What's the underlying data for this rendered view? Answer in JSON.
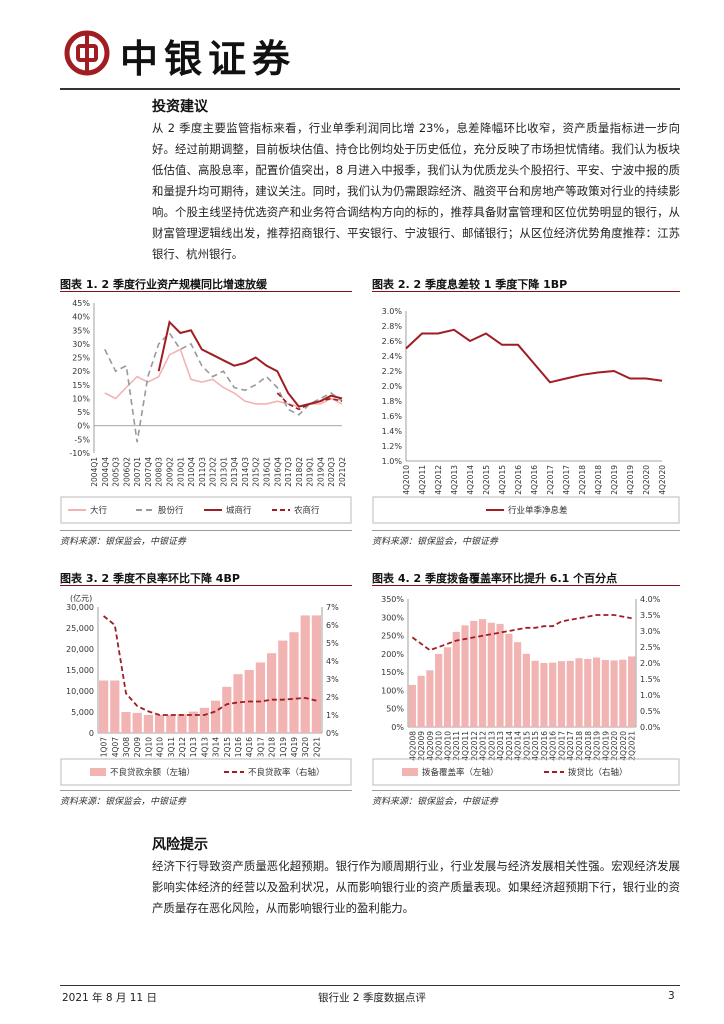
{
  "header": {
    "brand": "中银证券",
    "logo": "bank-of-china-logo",
    "color": "#a01d22"
  },
  "sections": [
    {
      "title": "投资建议",
      "text": "从 2 季度主要监管指标来看，行业单季利润同比增 23%，息差降幅环比收窄，资产质量指标进一步向好。经过前期调整，目前板块估值、持仓比例均处于历史低位，充分反映了市场担忧情绪。我们认为板块低估值、高股息率，配置价值突出，8 月进入中报季，我们认为优质龙头个股招行、平安、宁波中报的质和量提升均可期待，建议关注。同时，我们认为仍需跟踪经济、融资平台和房地产等政策对行业的持续影响。个股主线坚持优选资产和业务符合调结构方向的标的，推荐具备财富管理和区位优势明显的银行，从财富管理逻辑线出发，推荐招商银行、平安银行、宁波银行、邮储银行；从区位经济优势角度推荐：江苏银行、杭州银行。"
    },
    {
      "title": "风险提示",
      "text": "经济下行导致资产质量恶化超预期。银行作为顺周期行业，行业发展与经济发展相关性强。宏观经济发展影响实体经济的经营以及盈利状况，从而影响银行业的资产质量表现。如果经济超预期下行，银行业的资产质量存在恶化风险，从而影响银行业的盈利能力。"
    }
  ],
  "source_text": "资料来源：银保监会，中银证券",
  "footer": {
    "date": "2021 年 8 月 11 日",
    "title": "银行业 2 季度数据点评",
    "page": "3"
  },
  "chart_data": [
    {
      "title": "图表 1. 2 季度行业资产规模同比增速放缓",
      "type": "line",
      "x": [
        "2004Q1",
        "2004Q4",
        "2005Q3",
        "2006Q2",
        "2007Q1",
        "2007Q4",
        "2008Q3",
        "2009Q2",
        "2010Q1",
        "2010Q4",
        "2011Q3",
        "2012Q2",
        "2013Q1",
        "2013Q4",
        "2014Q3",
        "2015Q2",
        "2016Q1",
        "2016Q4",
        "2017Q3",
        "2018Q2",
        "2019Q1",
        "2019Q4",
        "2020Q3",
        "2021Q2"
      ],
      "ylim": [
        -10,
        45
      ],
      "yticks": [
        "-10%",
        "-5%",
        "0%",
        "5%",
        "10%",
        "15%",
        "20%",
        "25%",
        "30%",
        "35%",
        "40%",
        "45%"
      ],
      "series": [
        {
          "name": "大行",
          "color": "#f2b3b3",
          "dash": "",
          "values": [
            null,
            12,
            10,
            14,
            18,
            16,
            18,
            26,
            28,
            17,
            16,
            17,
            14,
            12,
            9,
            8,
            8,
            9,
            8,
            7,
            8,
            8,
            10,
            8
          ]
        },
        {
          "name": "股份行",
          "color": "#999999",
          "dash": "6,4",
          "values": [
            null,
            28,
            20,
            22,
            -6,
            18,
            30,
            34,
            28,
            30,
            22,
            18,
            20,
            14,
            13,
            15,
            18,
            14,
            6,
            4,
            8,
            10,
            12,
            9
          ]
        },
        {
          "name": "城商行",
          "color": "#a01d22",
          "dash": "",
          "values": [
            null,
            null,
            null,
            null,
            null,
            null,
            20,
            38,
            34,
            35,
            28,
            26,
            24,
            22,
            23,
            25,
            22,
            20,
            12,
            7,
            8,
            9,
            11,
            10
          ]
        },
        {
          "name": "农商行",
          "color": "#a01d22",
          "dash": "5,3",
          "values": [
            null,
            null,
            null,
            null,
            null,
            null,
            null,
            null,
            null,
            null,
            null,
            null,
            null,
            null,
            null,
            null,
            null,
            12,
            8,
            6,
            8,
            9,
            10,
            9
          ]
        }
      ]
    },
    {
      "title": "图表 2. 2 季度息差较 1 季度下降 1BP",
      "type": "line",
      "x": [
        "4Q2010",
        "4Q2011",
        "4Q2012",
        "4Q2013",
        "4Q2014",
        "2Q2015",
        "4Q2015",
        "2Q2016",
        "4Q2016",
        "2Q2017",
        "4Q2017",
        "2Q2018",
        "4Q2018",
        "2Q2019",
        "4Q2019",
        "2Q2020",
        "4Q2020"
      ],
      "ylim": [
        1.0,
        3.0
      ],
      "yticks": [
        "1.0%",
        "1.2%",
        "1.4%",
        "1.6%",
        "1.8%",
        "2.0%",
        "2.2%",
        "2.4%",
        "2.6%",
        "2.8%",
        "3.0%"
      ],
      "series": [
        {
          "name": "行业单季净息差",
          "color": "#a01d22",
          "dash": "",
          "values": [
            2.5,
            2.7,
            2.7,
            2.75,
            2.6,
            2.7,
            2.55,
            2.55,
            2.3,
            2.05,
            2.1,
            2.15,
            2.18,
            2.2,
            2.1,
            2.1,
            2.07
          ]
        }
      ]
    },
    {
      "title": "图表 3. 2 季度不良率环比下降 4BP",
      "type": "bar",
      "unit": "(亿元)",
      "x": [
        "1Q07",
        "4Q07",
        "3Q08",
        "2Q09",
        "1Q10",
        "4Q10",
        "3Q11",
        "2Q12",
        "1Q13",
        "4Q13",
        "3Q14",
        "2Q15",
        "1Q16",
        "4Q16",
        "3Q17",
        "2Q18",
        "1Q19",
        "4Q19",
        "3Q20",
        "2Q21"
      ],
      "ylim_left": [
        0,
        30000
      ],
      "yticks_left": [
        "0",
        "5,000",
        "10,000",
        "15,000",
        "20,000",
        "25,000",
        "30,000"
      ],
      "ylim_right": [
        0,
        7
      ],
      "yticks_right": [
        "0%",
        "1%",
        "2%",
        "3%",
        "4%",
        "5%",
        "6%",
        "7%"
      ],
      "bars": {
        "name": "不良贷款余额（左轴）",
        "color": "#f2b3b3",
        "values": [
          12500,
          12500,
          5000,
          4800,
          4300,
          4300,
          4300,
          4500,
          5100,
          6000,
          7700,
          11000,
          14000,
          15000,
          16800,
          19000,
          22000,
          24000,
          28000,
          28000
        ]
      },
      "line": {
        "name": "不良贷款率（右轴）",
        "color": "#a01d22",
        "dash": "5,3",
        "values": [
          6.5,
          6.0,
          2.2,
          1.5,
          1.2,
          1.0,
          1.0,
          1.0,
          1.0,
          1.0,
          1.2,
          1.6,
          1.7,
          1.75,
          1.75,
          1.85,
          1.85,
          1.9,
          1.95,
          1.8
        ]
      }
    },
    {
      "title": "图表 4. 2 季度拨备覆盖率环比提升 6.1 个百分点",
      "type": "bar",
      "x": [
        "4Q2008",
        "2Q2009",
        "4Q2009",
        "2Q2010",
        "4Q2010",
        "2Q2011",
        "4Q2011",
        "2Q2012",
        "4Q2012",
        "2Q2013",
        "4Q2013",
        "2Q2014",
        "4Q2014",
        "2Q2015",
        "4Q2015",
        "2Q2016",
        "4Q2016",
        "2Q2017",
        "4Q2017",
        "2Q2018",
        "4Q2018",
        "2Q2019",
        "4Q2019",
        "2Q2020",
        "4Q2020",
        "2Q2021"
      ],
      "ylim_left": [
        0,
        350
      ],
      "yticks_left": [
        "0%",
        "50%",
        "100%",
        "150%",
        "200%",
        "250%",
        "300%",
        "350%"
      ],
      "ylim_right": [
        0,
        4
      ],
      "yticks_right": [
        "0.0%",
        "0.5%",
        "1.0%",
        "1.5%",
        "2.0%",
        "2.5%",
        "3.0%",
        "3.5%",
        "4.0%"
      ],
      "bars": {
        "name": "拨备覆盖率（左轴）",
        "color": "#f2b3b3",
        "values": [
          115,
          140,
          155,
          200,
          218,
          260,
          278,
          290,
          295,
          285,
          282,
          255,
          232,
          200,
          181,
          175,
          176,
          180,
          181,
          188,
          186,
          190,
          183,
          182,
          184,
          193
        ]
      },
      "line": {
        "name": "拨贷比（右轴）",
        "color": "#a01d22",
        "dash": "5,3",
        "values": [
          2.8,
          2.6,
          2.4,
          2.5,
          2.6,
          2.7,
          2.75,
          2.8,
          2.85,
          2.9,
          2.95,
          3.0,
          3.05,
          3.1,
          3.1,
          3.15,
          3.15,
          3.3,
          3.35,
          3.4,
          3.45,
          3.5,
          3.5,
          3.5,
          3.45,
          3.4
        ]
      }
    }
  ]
}
